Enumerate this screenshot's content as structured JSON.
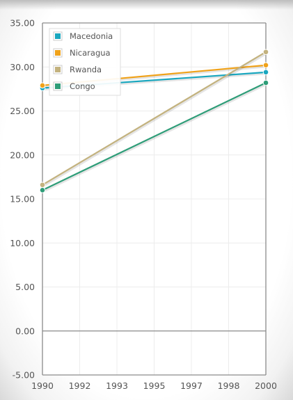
{
  "chart_data": {
    "type": "line",
    "title": "",
    "xlabel": "",
    "ylabel": "",
    "xlim": [
      1990,
      2000
    ],
    "ylim": [
      -5,
      35
    ],
    "x_ticks": [
      "1990",
      "1992",
      "1993",
      "1995",
      "1997",
      "1998",
      "2000"
    ],
    "y_ticks": [
      "35.00",
      "30.00",
      "25.00",
      "20.00",
      "15.00",
      "10.00",
      "5.00",
      "0.00",
      "-5.00"
    ],
    "x": [
      1990,
      2000
    ],
    "series": [
      {
        "name": "Macedonia",
        "values": [
          27.6,
          29.4
        ],
        "color": "#1aa7bf"
      },
      {
        "name": "Nicaragua",
        "values": [
          27.9,
          30.2
        ],
        "color": "#f0a21a"
      },
      {
        "name": "Rwanda",
        "values": [
          16.6,
          31.7
        ],
        "color": "#c3b27e"
      },
      {
        "name": "Congo",
        "values": [
          16.0,
          28.2
        ],
        "color": "#2e9d78"
      }
    ],
    "grid": true,
    "legend_position": "top-left"
  }
}
